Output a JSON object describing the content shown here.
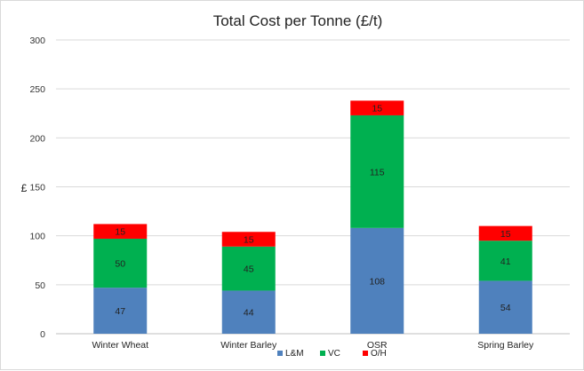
{
  "chart_data": {
    "type": "bar",
    "stacked": true,
    "title": "Total Cost per Tonne (£/t)",
    "ylabel": "£",
    "ylim": [
      0,
      300
    ],
    "yticks": [
      0,
      50,
      100,
      150,
      200,
      250,
      300
    ],
    "grid": true,
    "legend": "bottom",
    "categories": [
      "Winter Wheat",
      "Winter Barley",
      "OSR",
      "Spring Barley"
    ],
    "series": [
      {
        "name": "L&M",
        "color": "#4f81bd",
        "values": [
          47,
          44,
          108,
          54
        ]
      },
      {
        "name": "VC",
        "color": "#00b050",
        "values": [
          50,
          45,
          115,
          41
        ]
      },
      {
        "name": "O/H",
        "color": "#ff0000",
        "values": [
          15,
          15,
          15,
          15
        ]
      }
    ]
  }
}
